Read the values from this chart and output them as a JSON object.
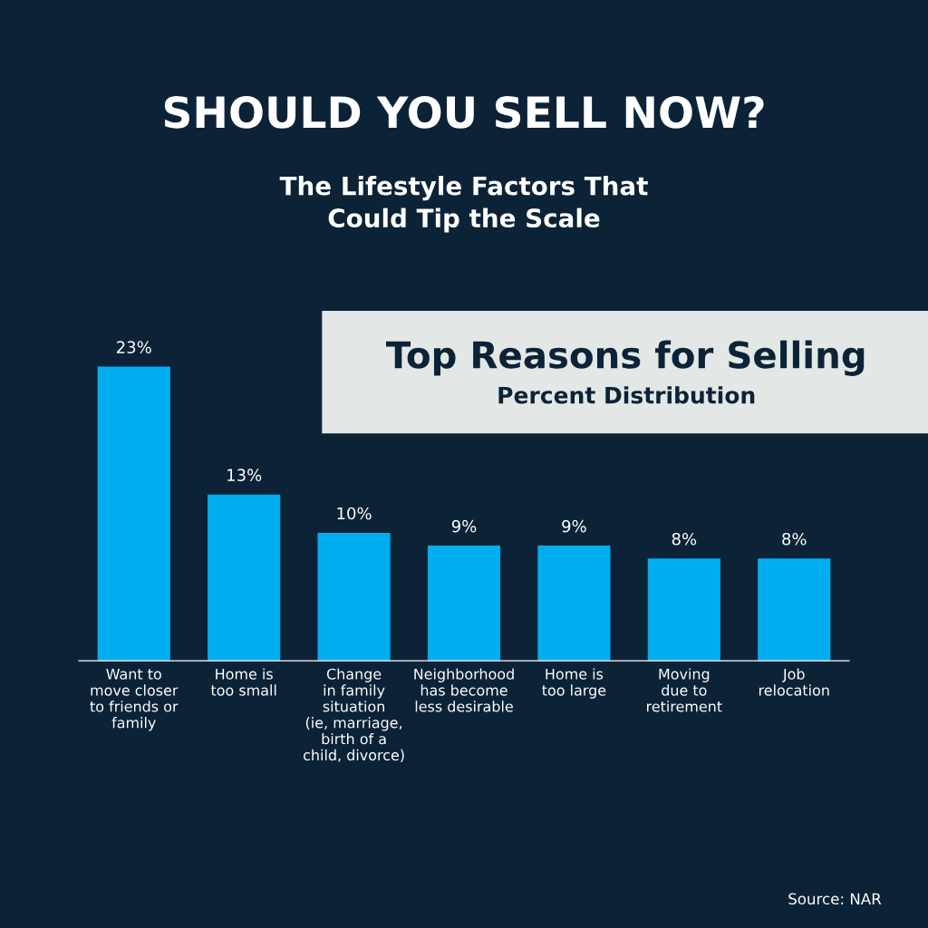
{
  "chart_data": {
    "type": "bar",
    "title": "SHOULD YOU SELL NOW?",
    "subtitle": "The Lifestyle Factors That\nCould Tip the Scale",
    "categories": [
      "Want to\nmove closer\nto friends or\nfamily",
      "Home is\ntoo small",
      "Change\nin family\nsituation\n(ie, marriage,\nbirth of a\nchild, divorce)",
      "Neighborhood\nhas become\nless desirable",
      "Home is\ntoo large",
      "Moving\ndue to\nretirement",
      "Job\nrelocation"
    ],
    "values": [
      23,
      13,
      10,
      9,
      9,
      8,
      8
    ],
    "value_labels": [
      "23%",
      "13%",
      "10%",
      "9%",
      "9%",
      "8%",
      "8%"
    ],
    "color": "#00aeef",
    "annotations": [
      "Top Reasons for Selling",
      "Percent Distribution",
      "Source: NAR"
    ]
  }
}
